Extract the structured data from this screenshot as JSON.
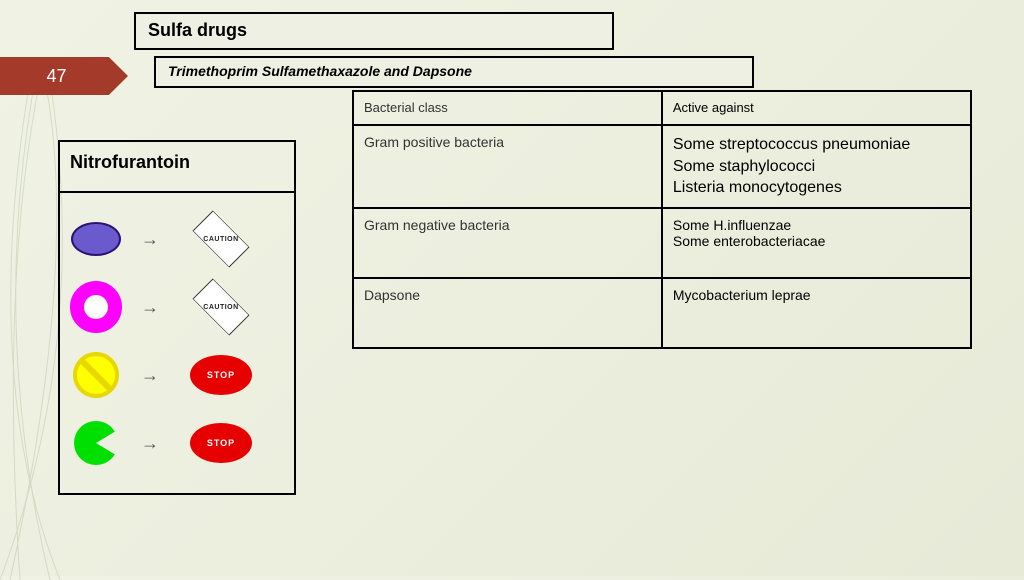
{
  "page_number": "47",
  "title_main": "Sulfa drugs",
  "title_sub": "Trimethoprim Sulfamethaxazole and Dapsone",
  "table": {
    "columns": [
      "Bacterial class",
      "Active against"
    ],
    "rows": [
      {
        "class": "Gram positive bacteria",
        "against": "Some streptococcus pneumoniae\nSome staphylococci\nListeria monocytogenes",
        "large": true
      },
      {
        "class": "Gram negative bacteria",
        "against": "Some H.influenzae\nSome enterobacteriacae",
        "large": false
      },
      {
        "class": "Dapsone",
        "against": "Mycobacterium leprae",
        "large": false
      }
    ]
  },
  "nitro": {
    "title": "Nitrofurantoin",
    "rows": [
      {
        "shape": "ellipse",
        "shape_color": "#6a5acd",
        "sign": "caution",
        "sign_label": "CAUTION"
      },
      {
        "shape": "donut",
        "shape_color": "#ff00ff",
        "sign": "caution",
        "sign_label": "CAUTION"
      },
      {
        "shape": "nosign",
        "shape_color": "#ffff00",
        "sign": "stop",
        "sign_label": "STOP"
      },
      {
        "shape": "pac",
        "shape_color": "#00e000",
        "sign": "stop",
        "sign_label": "STOP"
      }
    ]
  },
  "colors": {
    "background_start": "#f0f2e4",
    "background_end": "#e8ead8",
    "page_arrow_bg": "#a33a2a",
    "border": "#000000",
    "stop_red": "#e60000",
    "caution_bg": "#ffffff"
  }
}
